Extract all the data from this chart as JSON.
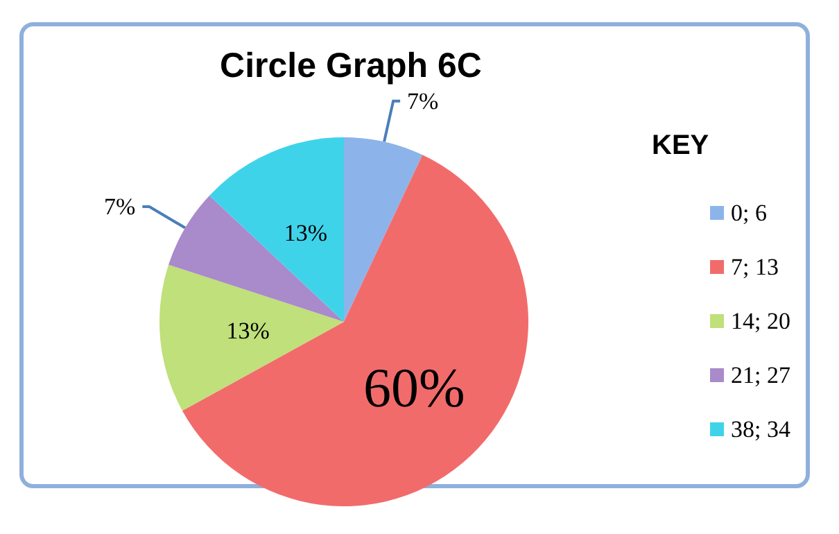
{
  "chart_data": {
    "type": "pie",
    "title": "Circle Graph 6C",
    "legend_title": "KEY",
    "categories": [
      "0; 6",
      "7; 13",
      "14; 20",
      "21; 27",
      "38; 34"
    ],
    "values": [
      7,
      60,
      13,
      7,
      13
    ],
    "colors": [
      "#8cb4ea",
      "#f26b6b",
      "#bfe07a",
      "#a98acb",
      "#3fd3ea"
    ],
    "value_labels": [
      "7%",
      "60%",
      "13%",
      "7%",
      "13%"
    ],
    "legend": "right"
  }
}
